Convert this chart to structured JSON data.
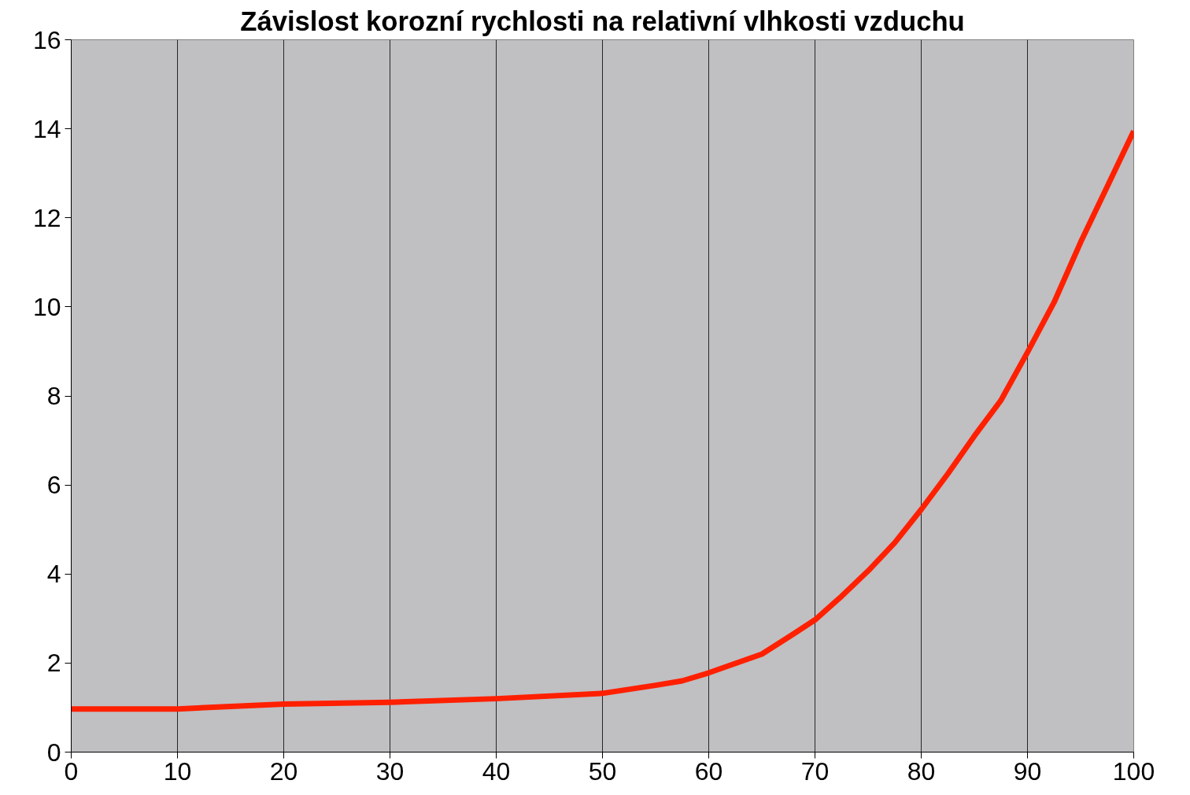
{
  "chart_data": {
    "type": "line",
    "title": "Závislost korozní rychlosti na relativní vlhkosti vzduchu",
    "x": [
      0,
      10,
      20,
      30,
      40,
      50,
      55,
      57.5,
      60,
      65,
      67.5,
      70,
      72.5,
      75,
      77.5,
      80,
      82.5,
      85,
      87.5,
      90,
      92.5,
      95,
      97.5,
      100
    ],
    "series": [
      {
        "color": "#ff2000",
        "values": [
          0.97,
          0.97,
          1.08,
          1.12,
          1.2,
          1.32,
          1.5,
          1.6,
          1.78,
          2.2,
          2.58,
          2.97,
          3.5,
          4.07,
          4.7,
          5.45,
          6.25,
          7.1,
          7.9,
          8.98,
          10.1,
          11.45,
          12.7,
          13.95
        ]
      }
    ],
    "xlim": [
      0,
      100
    ],
    "xticks": [
      0,
      10,
      20,
      30,
      40,
      50,
      60,
      70,
      80,
      90,
      100
    ],
    "ylim": [
      0,
      16
    ],
    "yticks": [
      0,
      2,
      4,
      6,
      8,
      10,
      12,
      14,
      16
    ],
    "grid": "x",
    "marker": "none",
    "line_style": "solid"
  }
}
